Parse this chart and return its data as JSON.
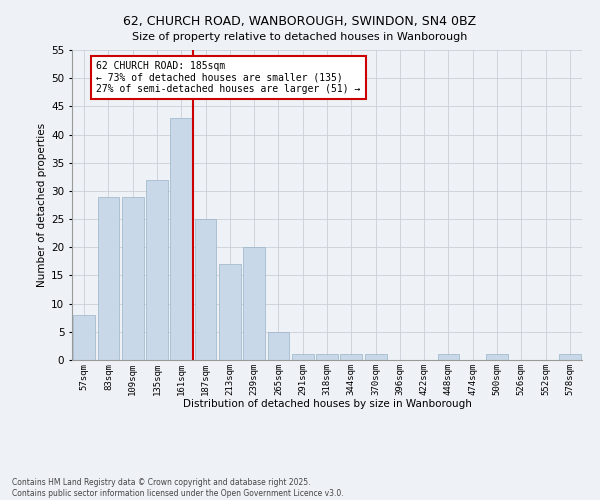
{
  "title_line1": "62, CHURCH ROAD, WANBOROUGH, SWINDON, SN4 0BZ",
  "title_line2": "Size of property relative to detached houses in Wanborough",
  "xlabel": "Distribution of detached houses by size in Wanborough",
  "ylabel": "Number of detached properties",
  "footnote_line1": "Contains HM Land Registry data © Crown copyright and database right 2025.",
  "footnote_line2": "Contains public sector information licensed under the Open Government Licence v3.0.",
  "categories": [
    "57sqm",
    "83sqm",
    "109sqm",
    "135sqm",
    "161sqm",
    "187sqm",
    "213sqm",
    "239sqm",
    "265sqm",
    "291sqm",
    "318sqm",
    "344sqm",
    "370sqm",
    "396sqm",
    "422sqm",
    "448sqm",
    "474sqm",
    "500sqm",
    "526sqm",
    "552sqm",
    "578sqm"
  ],
  "values": [
    8,
    29,
    29,
    32,
    43,
    25,
    17,
    20,
    5,
    1,
    1,
    1,
    1,
    0,
    0,
    1,
    0,
    1,
    0,
    0,
    1
  ],
  "bar_color": "#c8d8e8",
  "bar_edge_color": "#9ab4c8",
  "grid_color": "#c8d0d8",
  "background_color": "#eef2f6",
  "vline_color": "#cc0000",
  "annotation_text": "62 CHURCH ROAD: 185sqm\n← 73% of detached houses are smaller (135)\n27% of semi-detached houses are larger (51) →",
  "annotation_box_color": "white",
  "annotation_box_edgecolor": "#cc0000",
  "ylim": [
    0,
    55
  ],
  "yticks": [
    0,
    5,
    10,
    15,
    20,
    25,
    30,
    35,
    40,
    45,
    50,
    55
  ]
}
